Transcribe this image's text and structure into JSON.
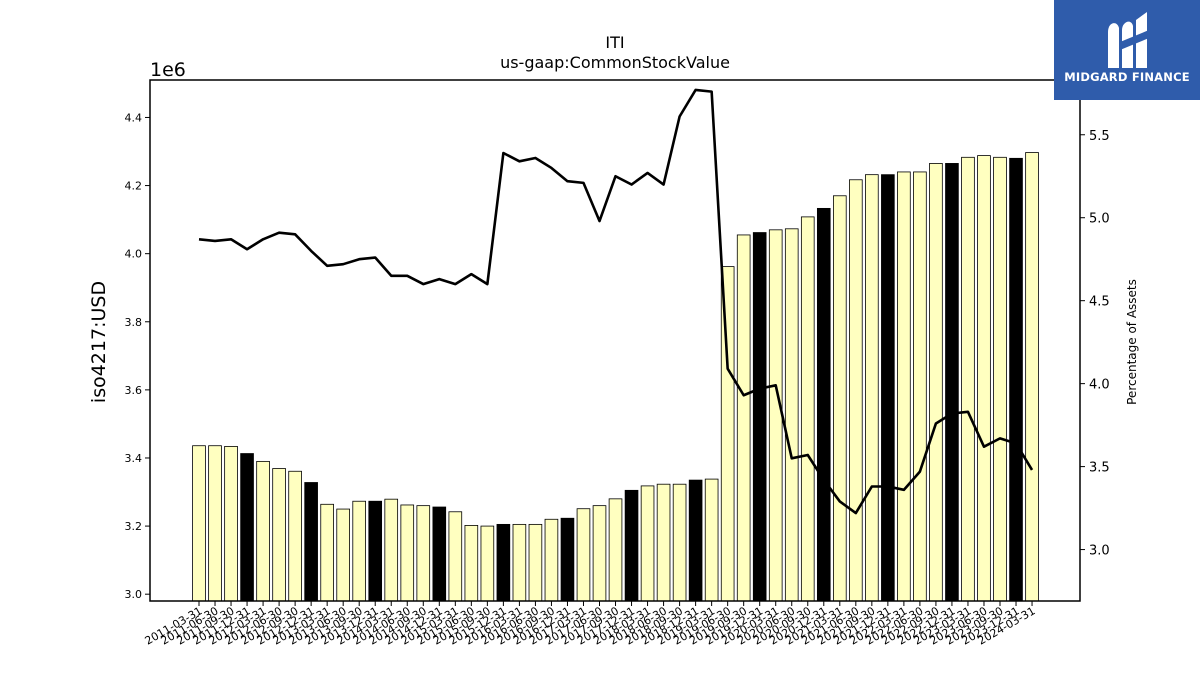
{
  "logo": {
    "name": "MIDGARD FINANCE",
    "icon": "midgard-finance-logo-icon",
    "bg_color": "#2f5cab"
  },
  "chart_data": {
    "type": "bar",
    "title": "ITI",
    "subtitle": "us-gaap:CommonStockValue",
    "ylabel": "iso4217:USD",
    "y_offset_label": "1e6",
    "y2label": "Percentage of Assets",
    "ylim": [
      2.98,
      4.51
    ],
    "y2lim": [
      2.69,
      5.83
    ],
    "yticks": [
      "3.0",
      "3.2",
      "3.4",
      "3.6",
      "3.8",
      "4.0",
      "4.2",
      "4.4"
    ],
    "y2ticks": [
      "3.0",
      "3.5",
      "4.0",
      "4.5",
      "5.0",
      "5.5"
    ],
    "grid": false,
    "bar_colors": {
      "quarter": "#ffffc0",
      "fiscal_year_end": "#000000"
    },
    "line_color": "#000000",
    "categories": [
      "2011-03-31",
      "2011-06-30",
      "2011-09-30",
      "2011-12-31",
      "2012-03-31",
      "2012-06-30",
      "2012-09-30",
      "2012-12-31",
      "2013-03-31",
      "2013-06-30",
      "2013-09-30",
      "2013-12-31",
      "2014-03-31",
      "2014-06-30",
      "2014-09-30",
      "2014-12-31",
      "2015-03-31",
      "2015-06-30",
      "2015-09-30",
      "2015-12-31",
      "2016-03-31",
      "2016-06-30",
      "2016-09-30",
      "2016-12-31",
      "2017-03-31",
      "2017-06-30",
      "2017-09-30",
      "2017-12-31",
      "2018-03-31",
      "2018-06-30",
      "2018-09-30",
      "2018-12-31",
      "2019-03-31",
      "2019-06-30",
      "2019-09-30",
      "2019-12-31",
      "2020-03-31",
      "2020-06-30",
      "2020-09-30",
      "2020-12-31",
      "2021-03-31",
      "2021-06-30",
      "2021-09-30",
      "2021-12-31",
      "2022-03-31",
      "2022-06-30",
      "2022-09-30",
      "2022-12-31",
      "2023-03-31",
      "2023-06-30",
      "2023-09-30",
      "2023-12-31",
      "2024-03-31"
    ],
    "x_tick_labels": [
      "2011-03-31",
      "2011-06-30",
      "2011-09-30",
      "2011-12-31",
      "2012-03-31",
      "2012-06-30",
      "2012-09-30",
      "2012-12-31",
      "2013-03-31",
      "2013-06-30",
      "2013-09-30",
      "2013-12-31",
      "2014-03-31",
      "2014-06-30",
      "2014-09-30",
      "2014-12-31",
      "2015-03-31",
      "2015-06-30",
      "2015-09-30",
      "2015-12-31",
      "2016-03-31",
      "2016-06-30",
      "2016-09-30",
      "2016-12-31",
      "2017-03-31",
      "2017-06-30",
      "2017-09-30",
      "2017-12-31",
      "2018-03-31",
      "2018-06-30",
      "2018-09-30",
      "2018-12-31",
      "2019-03-31",
      "2019-06-30",
      "2019-09-30",
      "2019-12-31",
      "2020-03-31",
      "2020-06-30",
      "2020-09-30",
      "2020-12-31",
      "2021-03-31",
      "2021-06-30",
      "2021-09-30",
      "2021-12-31",
      "2022-03-31",
      "2022-06-30",
      "2022-09-30",
      "2022-12-31",
      "2023-03-31",
      "2023-06-30",
      "2023-09-30",
      "2023-12-31",
      "2024-03-31"
    ],
    "series": [
      {
        "kind": "bar",
        "axis": "left",
        "values": [
          3.436,
          3.436,
          3.434,
          3.413,
          3.39,
          3.369,
          3.361,
          3.328,
          3.264,
          3.25,
          3.273,
          3.273,
          3.279,
          3.262,
          3.26,
          3.256,
          3.242,
          3.202,
          3.2,
          3.205,
          3.205,
          3.205,
          3.22,
          3.223,
          3.251,
          3.26,
          3.28,
          3.305,
          3.318,
          3.323,
          3.323,
          3.335,
          3.338,
          3.962,
          4.055,
          4.062,
          4.07,
          4.073,
          4.108,
          4.133,
          4.17,
          4.217,
          4.232,
          4.232,
          4.24,
          4.24,
          4.265,
          4.265,
          4.283,
          4.288,
          4.283,
          4.28,
          4.297
        ],
        "fiscal_year_end": [
          false,
          false,
          false,
          true,
          false,
          false,
          false,
          true,
          false,
          false,
          false,
          true,
          false,
          false,
          false,
          true,
          false,
          false,
          false,
          true,
          false,
          false,
          false,
          true,
          false,
          false,
          false,
          true,
          false,
          false,
          false,
          true,
          false,
          false,
          false,
          true,
          false,
          false,
          false,
          true,
          false,
          false,
          false,
          true,
          false,
          false,
          false,
          true,
          false,
          false,
          false,
          true,
          false
        ]
      },
      {
        "kind": "line",
        "axis": "right",
        "values": [
          4.87,
          4.86,
          4.87,
          4.81,
          4.87,
          4.91,
          4.9,
          4.8,
          4.71,
          4.72,
          4.75,
          4.76,
          4.65,
          4.65,
          4.6,
          4.63,
          4.6,
          4.66,
          4.6,
          5.39,
          5.34,
          5.36,
          5.3,
          5.22,
          5.21,
          4.98,
          5.25,
          5.2,
          5.27,
          5.2,
          5.61,
          5.77,
          5.76,
          4.09,
          3.93,
          3.97,
          3.99,
          3.55,
          3.57,
          3.42,
          3.29,
          3.22,
          3.38,
          3.38,
          3.36,
          3.47,
          3.76,
          3.82,
          3.83,
          3.62,
          3.67,
          3.64,
          3.48
        ]
      }
    ]
  }
}
